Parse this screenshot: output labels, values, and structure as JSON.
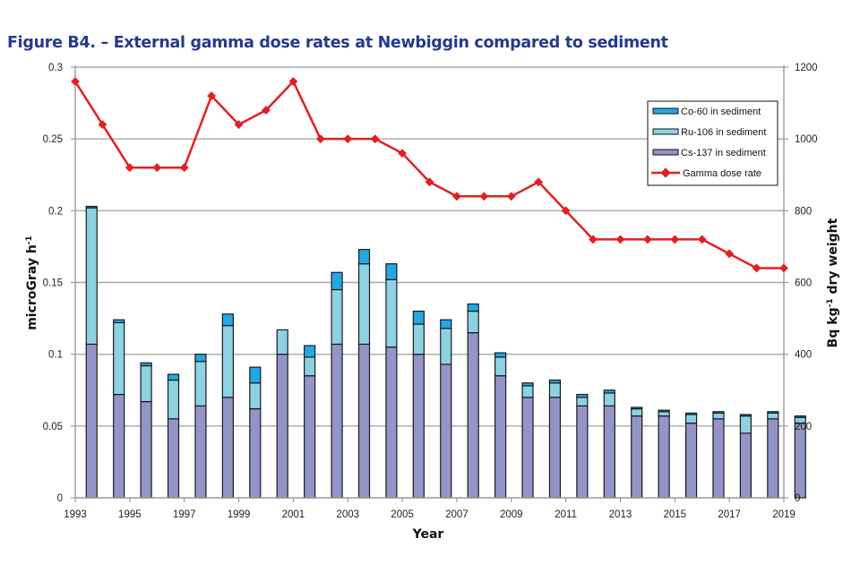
{
  "figure_title": "Figure B4. – External gamma dose rates at Newbiggin compared to sediment",
  "colors": {
    "cs137": "#9494c8",
    "ru106": "#8cd2e0",
    "co60": "#22a8e2",
    "gamma": "#e32020",
    "title": "#243a8c"
  },
  "chart_data": {
    "type": "bar",
    "subtype": "stacked bar with line on secondary axis",
    "title": "Figure B4. – External gamma dose rates at Newbiggin compared to sediment",
    "xlabel": "Year",
    "ylabel_left": "microGray h-1",
    "ylabel_left_base": "microGray h",
    "ylabel_left_sup": "-1",
    "ylabel_right_parts": [
      "Bq kg",
      "-1",
      " dry weight"
    ],
    "ylim_left": [
      0,
      0.3
    ],
    "ylim_right": [
      0,
      1200
    ],
    "xlim": [
      1993,
      2019
    ],
    "left_ticks": [
      "0",
      "0.05",
      "0.1",
      "0.15",
      "0.2",
      "0.25",
      "0.3"
    ],
    "left_tick_values": [
      0,
      0.05,
      0.1,
      0.15,
      0.2,
      0.25,
      0.3
    ],
    "right_ticks": [
      "0",
      "200",
      "400",
      "600",
      "800",
      "1000",
      "1200"
    ],
    "right_tick_values": [
      0,
      200,
      400,
      600,
      800,
      1000,
      1200
    ],
    "x_ticks": [
      "1993",
      "1995",
      "1997",
      "1999",
      "2001",
      "2003",
      "2005",
      "2007",
      "2009",
      "2011",
      "2013",
      "2015",
      "2017",
      "2019"
    ],
    "x_tick_values": [
      1993,
      1995,
      1997,
      1999,
      2001,
      2003,
      2005,
      2007,
      2009,
      2011,
      2013,
      2015,
      2017,
      2019
    ],
    "grid": true,
    "legend_position": "top-right",
    "legend": [
      "Co-60 in sediment",
      "Ru-106 in sediment",
      "Cs-137 in sediment",
      "Gamma dose rate"
    ],
    "years": [
      1993,
      1994,
      1995,
      1996,
      1997,
      1998,
      1999,
      2000,
      2001,
      2002,
      2003,
      2004,
      2005,
      2006,
      2007,
      2008,
      2009,
      2010,
      2011,
      2012,
      2013,
      2014,
      2015,
      2016,
      2017,
      2018,
      2019
    ],
    "series": [
      {
        "name": "Cs-137 in sediment",
        "axis": "right",
        "kind": "stacked-bar",
        "unit": "Bq kg-1 dry weight",
        "values": [
          428,
          288,
          268,
          220,
          256,
          280,
          248,
          400,
          340,
          428,
          428,
          420,
          400,
          372,
          460,
          340,
          280,
          280,
          256,
          256,
          228,
          228,
          208,
          220,
          180,
          220,
          208
        ]
      },
      {
        "name": "Ru-106 in sediment",
        "axis": "right",
        "kind": "stacked-bar",
        "unit": "Bq kg-1 dry weight",
        "values": [
          380,
          200,
          100,
          108,
          124,
          200,
          72,
          68,
          52,
          152,
          224,
          188,
          84,
          100,
          60,
          52,
          32,
          40,
          24,
          36,
          20,
          12,
          24,
          16,
          48,
          16,
          16
        ]
      },
      {
        "name": "Co-60 in sediment",
        "axis": "right",
        "kind": "stacked-bar",
        "unit": "Bq kg-1 dry weight",
        "values": [
          4,
          8,
          8,
          16,
          20,
          32,
          44,
          0,
          32,
          48,
          40,
          44,
          36,
          24,
          20,
          12,
          8,
          8,
          8,
          8,
          4,
          4,
          4,
          4,
          4,
          4,
          4
        ]
      },
      {
        "name": "Gamma dose rate",
        "axis": "left",
        "kind": "line",
        "unit": "microGray h-1",
        "values": [
          0.29,
          0.26,
          0.23,
          0.23,
          0.23,
          0.28,
          0.26,
          0.27,
          0.29,
          0.25,
          0.25,
          0.25,
          0.24,
          0.22,
          0.21,
          0.21,
          0.21,
          0.22,
          0.2,
          0.18,
          0.18,
          0.18,
          0.18,
          0.18,
          0.17,
          0.16,
          0.16
        ]
      }
    ]
  }
}
